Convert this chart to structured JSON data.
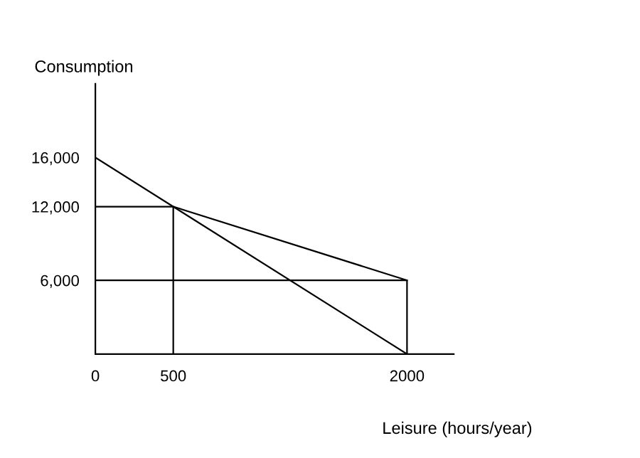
{
  "chart_data": {
    "type": "line",
    "xlabel": "Leisure (hours/year)",
    "ylabel": "Consumption",
    "xlim": [
      0,
      2300
    ],
    "ylim": [
      0,
      22000
    ],
    "xticks": [
      0,
      500,
      2000
    ],
    "yticks": [
      {
        "value": 6000,
        "label": "6,000"
      },
      {
        "value": 12000,
        "label": "12,000"
      },
      {
        "value": 16000,
        "label": "16,000"
      }
    ],
    "grid": false,
    "legend": false,
    "marker": "none",
    "line_style": "solid",
    "series": [
      {
        "color": "#000000",
        "x": [
          0,
          2000
        ],
        "values": [
          16000,
          0
        ]
      },
      {
        "color": "#000000",
        "x": [
          500,
          2000
        ],
        "values": [
          12000,
          6000
        ]
      },
      {
        "color": "#000000",
        "x": [
          0,
          500,
          500
        ],
        "values": [
          12000,
          12000,
          0
        ]
      },
      {
        "color": "#000000",
        "x": [
          0,
          2000,
          2000
        ],
        "values": [
          6000,
          6000,
          0
        ]
      }
    ]
  }
}
